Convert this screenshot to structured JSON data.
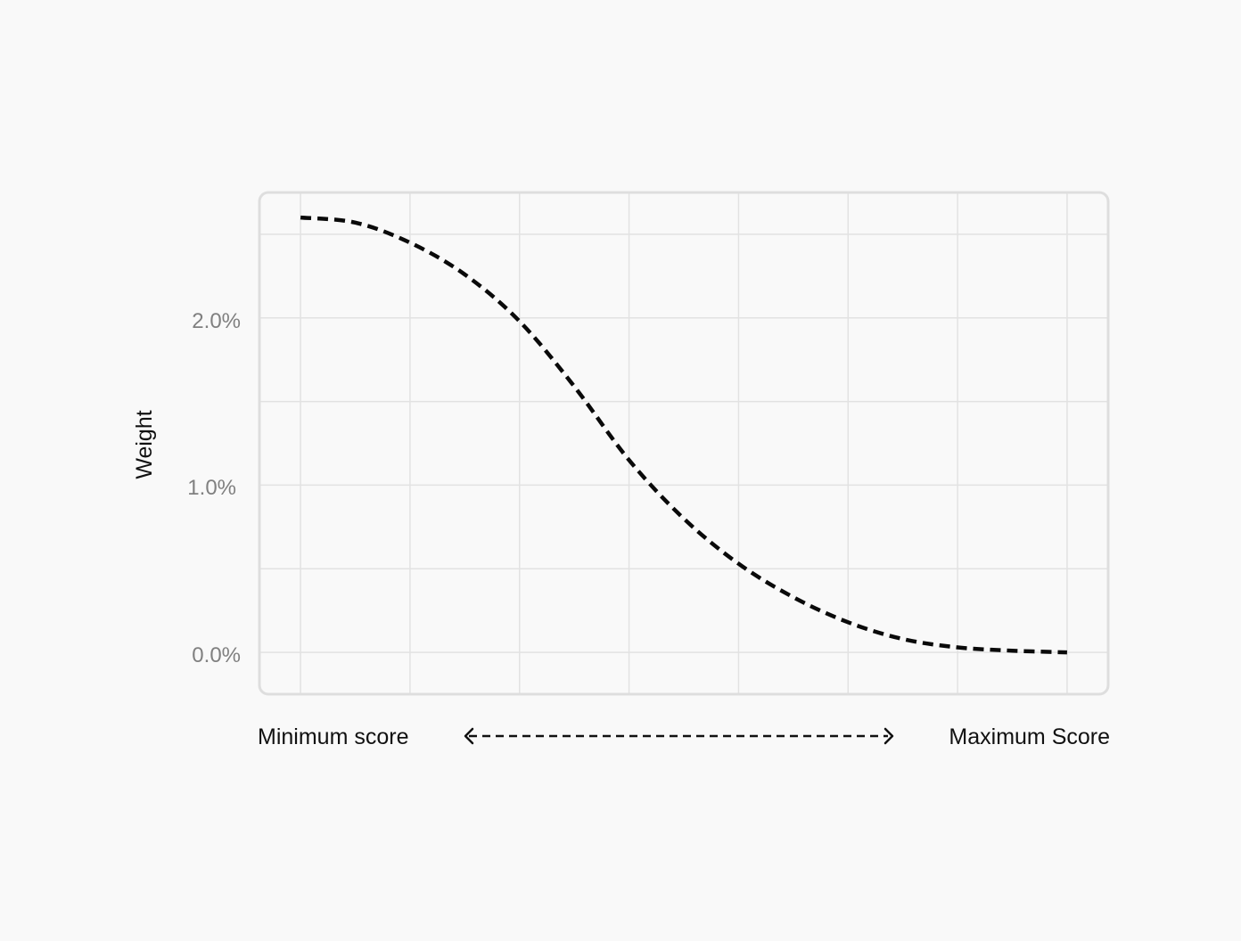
{
  "chart_data": {
    "type": "line",
    "xlabel_min": "Minimum score",
    "xlabel_max": "Maximum Score",
    "ylabel": "Weight",
    "y_ticks": [
      "0.0%",
      "1.0%",
      "2.0%"
    ],
    "y_tick_values": [
      0,
      1,
      2
    ],
    "ylim": [
      -0.25,
      2.75
    ],
    "xlim": [
      -0.375,
      7.375
    ],
    "grid": true,
    "x_categories": 8,
    "series": [
      {
        "line_style": "dashed",
        "color": "#0a0a0a",
        "points": [
          {
            "x": 0,
            "y": 2.6
          },
          {
            "x": 0.5,
            "y": 2.57
          },
          {
            "x": 1,
            "y": 2.45
          },
          {
            "x": 1.5,
            "y": 2.26
          },
          {
            "x": 2,
            "y": 1.98
          },
          {
            "x": 2.5,
            "y": 1.59
          },
          {
            "x": 3,
            "y": 1.15
          },
          {
            "x": 3.5,
            "y": 0.8
          },
          {
            "x": 4,
            "y": 0.53
          },
          {
            "x": 4.5,
            "y": 0.33
          },
          {
            "x": 5,
            "y": 0.18
          },
          {
            "x": 5.5,
            "y": 0.08
          },
          {
            "x": 6,
            "y": 0.03
          },
          {
            "x": 6.5,
            "y": 0.01
          },
          {
            "x": 7,
            "y": 0.0
          }
        ]
      }
    ]
  }
}
